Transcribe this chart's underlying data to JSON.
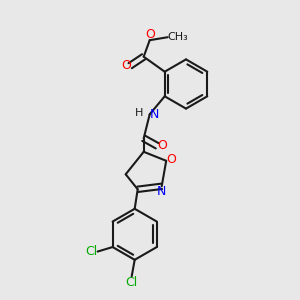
{
  "bg_color": "#e8e8e8",
  "bond_color": "#1a1a1a",
  "bond_width": 1.5,
  "atom_colors": {
    "O": "#ff0000",
    "N": "#0000ff",
    "Cl": "#00aa00",
    "C": "#1a1a1a"
  },
  "font_size": 9,
  "figsize": [
    3.0,
    3.0
  ],
  "dpi": 100
}
